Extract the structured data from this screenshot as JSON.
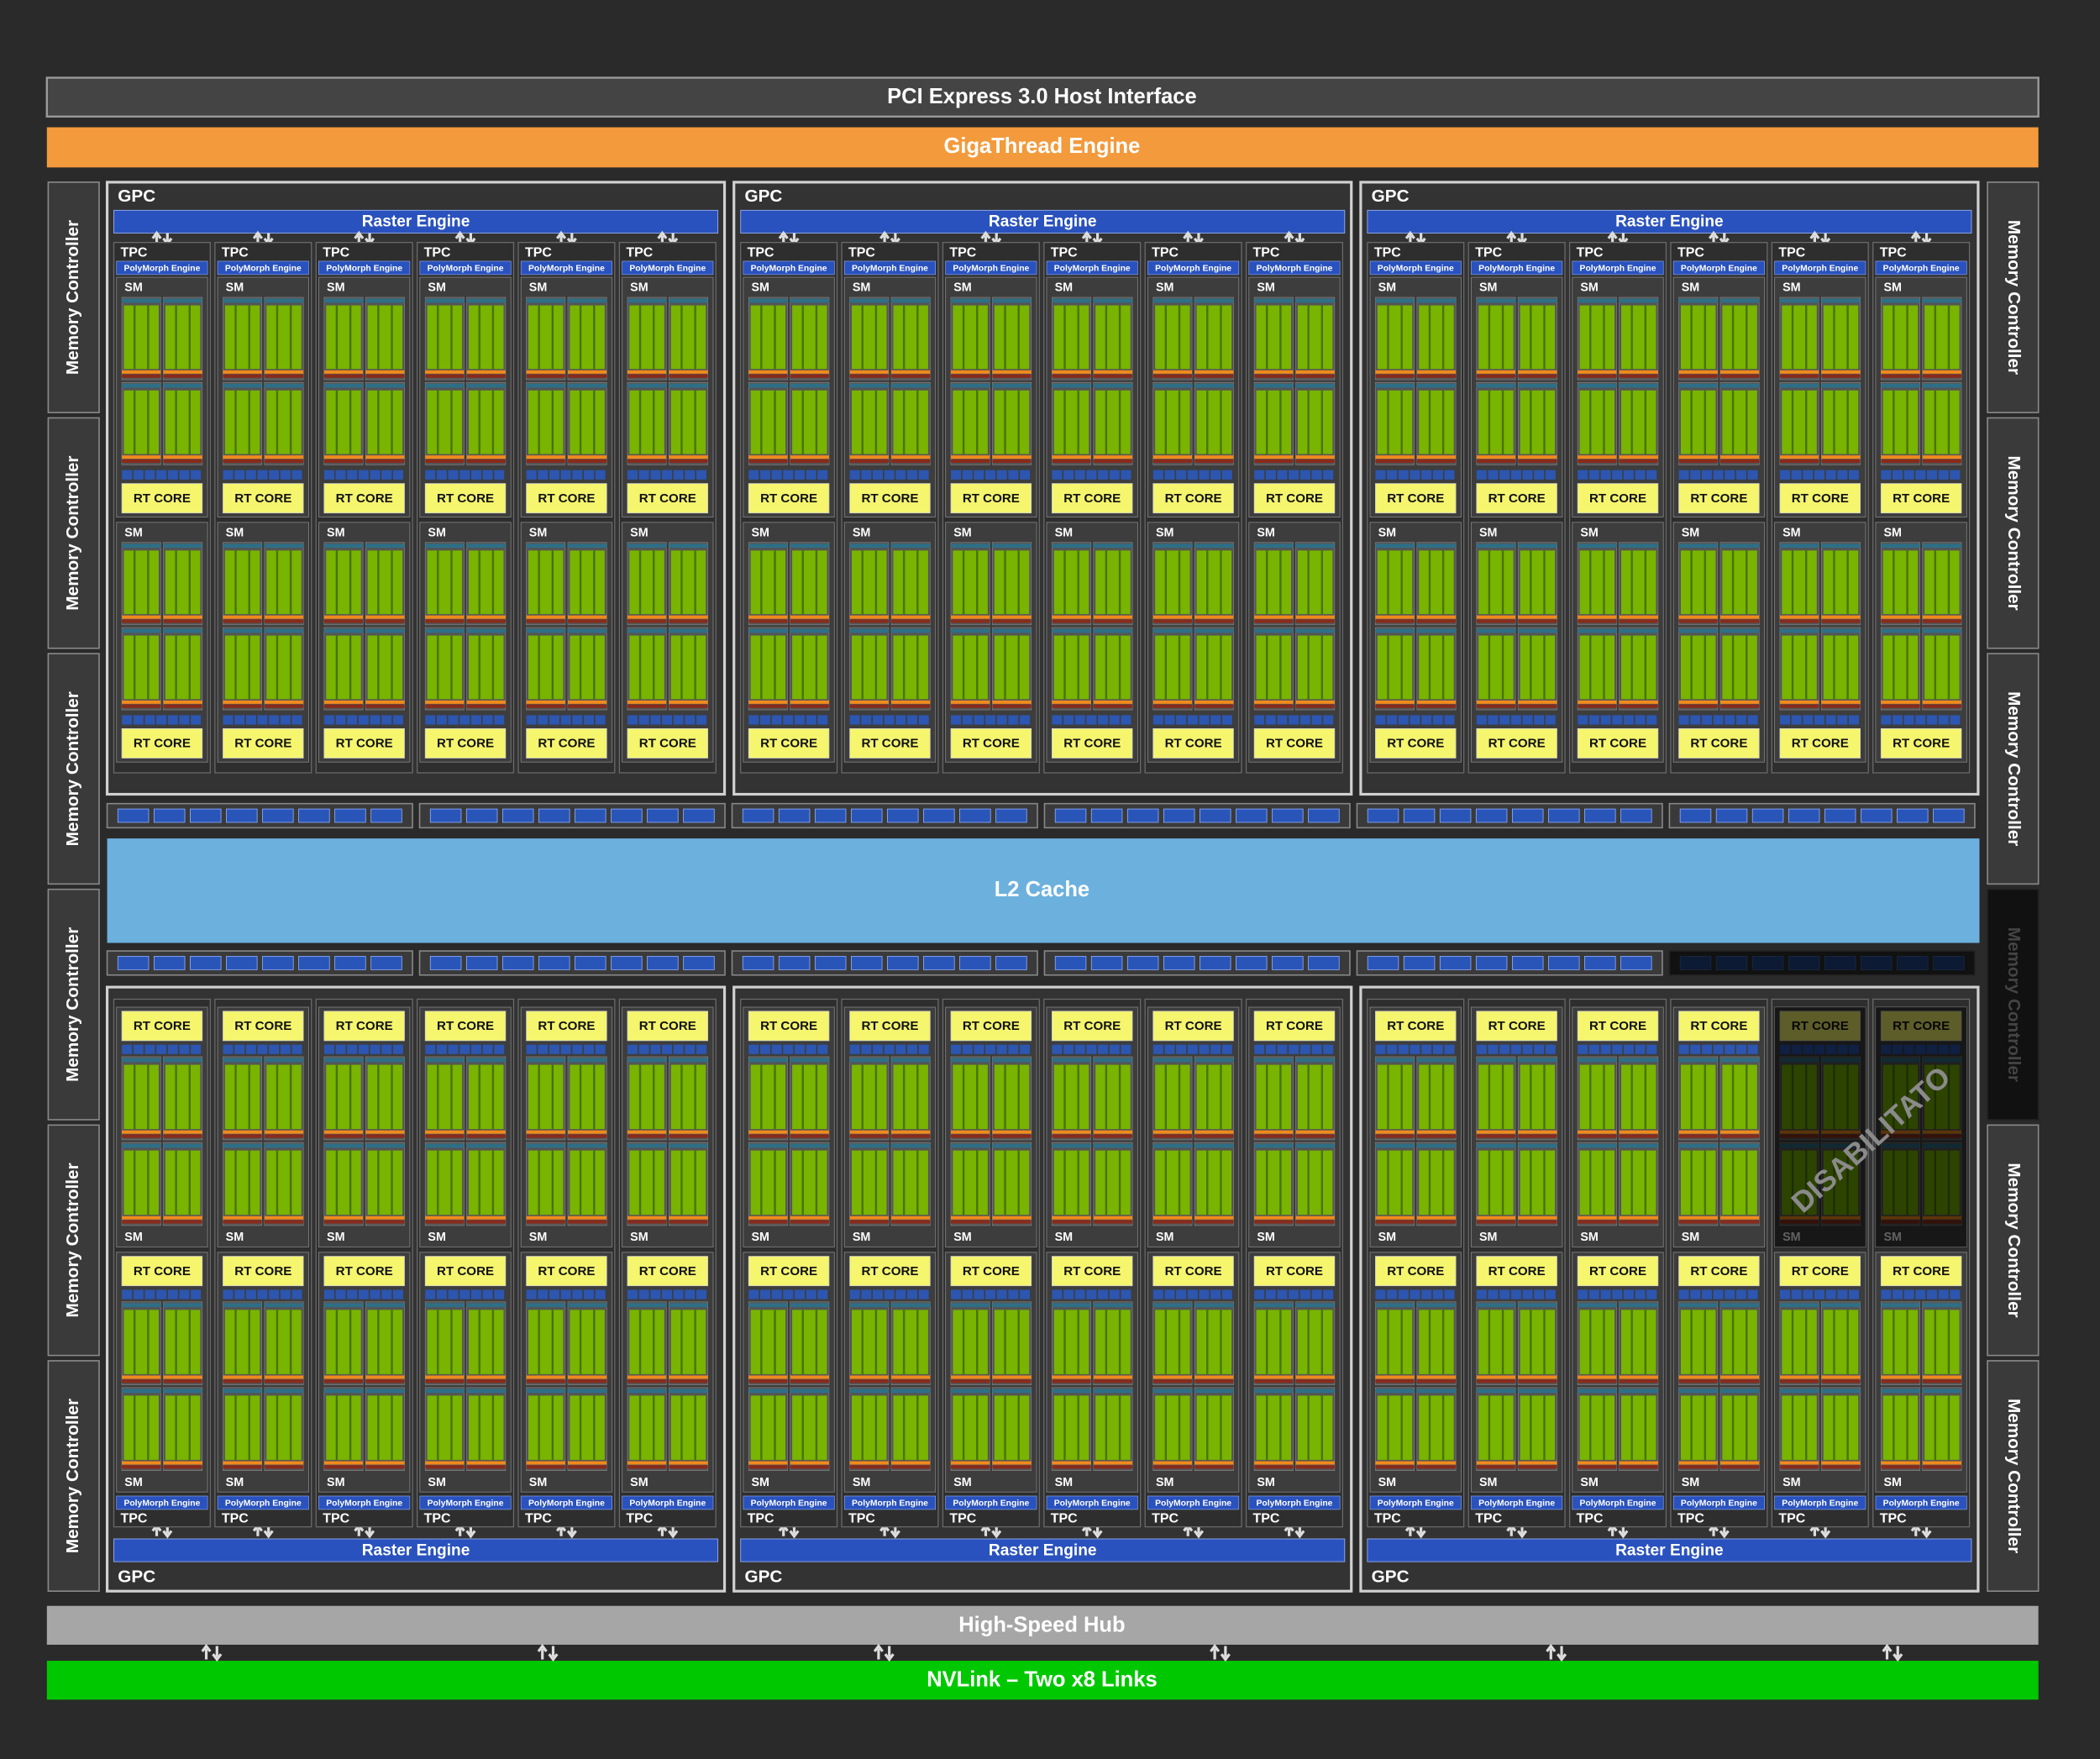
{
  "host_interface": "PCI Express 3.0 Host Interface",
  "gigathread_engine": "GigaThread Engine",
  "l2_cache": "L2 Cache",
  "high_speed_hub": "High-Speed Hub",
  "nvlink": "NVLink – Two x8 Links",
  "disabled_label": "DISABILITATO",
  "memory_controllers_left": [
    {
      "label": "Memory Controller"
    },
    {
      "label": "Memory Controller"
    },
    {
      "label": "Memory Controller"
    },
    {
      "label": "Memory Controller"
    },
    {
      "label": "Memory Controller"
    },
    {
      "label": "Memory Controller"
    }
  ],
  "memory_controllers_right": [
    {
      "label": "Memory Controller"
    },
    {
      "label": "Memory Controller"
    },
    {
      "label": "Memory Controller"
    },
    {
      "label": "Memory Controller",
      "disabled": true
    },
    {
      "label": "Memory Controller"
    },
    {
      "label": "Memory Controller"
    }
  ],
  "gpcs": [
    {
      "label": "GPC",
      "raster_engine": "Raster Engine",
      "tpcs": [
        {
          "label": "TPC",
          "polymorph_engine": "PolyMorph Engine",
          "sms": [
            {
              "label": "SM",
              "rt_core": "RT CORE"
            },
            {
              "label": "SM",
              "rt_core": "RT CORE"
            }
          ]
        },
        {
          "label": "TPC",
          "polymorph_engine": "PolyMorph Engine",
          "sms": [
            {
              "label": "SM",
              "rt_core": "RT CORE"
            },
            {
              "label": "SM",
              "rt_core": "RT CORE"
            }
          ]
        },
        {
          "label": "TPC",
          "polymorph_engine": "PolyMorph Engine",
          "sms": [
            {
              "label": "SM",
              "rt_core": "RT CORE"
            },
            {
              "label": "SM",
              "rt_core": "RT CORE"
            }
          ]
        },
        {
          "label": "TPC",
          "polymorph_engine": "PolyMorph Engine",
          "sms": [
            {
              "label": "SM",
              "rt_core": "RT CORE"
            },
            {
              "label": "SM",
              "rt_core": "RT CORE"
            }
          ]
        },
        {
          "label": "TPC",
          "polymorph_engine": "PolyMorph Engine",
          "sms": [
            {
              "label": "SM",
              "rt_core": "RT CORE"
            },
            {
              "label": "SM",
              "rt_core": "RT CORE"
            }
          ]
        },
        {
          "label": "TPC",
          "polymorph_engine": "PolyMorph Engine",
          "sms": [
            {
              "label": "SM",
              "rt_core": "RT CORE"
            },
            {
              "label": "SM",
              "rt_core": "RT CORE"
            }
          ]
        }
      ]
    },
    {
      "label": "GPC",
      "raster_engine": "Raster Engine",
      "tpcs": [
        {
          "label": "TPC",
          "polymorph_engine": "PolyMorph Engine",
          "sms": [
            {
              "label": "SM",
              "rt_core": "RT CORE"
            },
            {
              "label": "SM",
              "rt_core": "RT CORE"
            }
          ]
        },
        {
          "label": "TPC",
          "polymorph_engine": "PolyMorph Engine",
          "sms": [
            {
              "label": "SM",
              "rt_core": "RT CORE"
            },
            {
              "label": "SM",
              "rt_core": "RT CORE"
            }
          ]
        },
        {
          "label": "TPC",
          "polymorph_engine": "PolyMorph Engine",
          "sms": [
            {
              "label": "SM",
              "rt_core": "RT CORE"
            },
            {
              "label": "SM",
              "rt_core": "RT CORE"
            }
          ]
        },
        {
          "label": "TPC",
          "polymorph_engine": "PolyMorph Engine",
          "sms": [
            {
              "label": "SM",
              "rt_core": "RT CORE"
            },
            {
              "label": "SM",
              "rt_core": "RT CORE"
            }
          ]
        },
        {
          "label": "TPC",
          "polymorph_engine": "PolyMorph Engine",
          "sms": [
            {
              "label": "SM",
              "rt_core": "RT CORE"
            },
            {
              "label": "SM",
              "rt_core": "RT CORE"
            }
          ]
        },
        {
          "label": "TPC",
          "polymorph_engine": "PolyMorph Engine",
          "sms": [
            {
              "label": "SM",
              "rt_core": "RT CORE"
            },
            {
              "label": "SM",
              "rt_core": "RT CORE"
            }
          ]
        }
      ]
    },
    {
      "label": "GPC",
      "raster_engine": "Raster Engine",
      "tpcs": [
        {
          "label": "TPC",
          "polymorph_engine": "PolyMorph Engine",
          "sms": [
            {
              "label": "SM",
              "rt_core": "RT CORE"
            },
            {
              "label": "SM",
              "rt_core": "RT CORE"
            }
          ]
        },
        {
          "label": "TPC",
          "polymorph_engine": "PolyMorph Engine",
          "sms": [
            {
              "label": "SM",
              "rt_core": "RT CORE"
            },
            {
              "label": "SM",
              "rt_core": "RT CORE"
            }
          ]
        },
        {
          "label": "TPC",
          "polymorph_engine": "PolyMorph Engine",
          "sms": [
            {
              "label": "SM",
              "rt_core": "RT CORE"
            },
            {
              "label": "SM",
              "rt_core": "RT CORE"
            }
          ]
        },
        {
          "label": "TPC",
          "polymorph_engine": "PolyMorph Engine",
          "sms": [
            {
              "label": "SM",
              "rt_core": "RT CORE"
            },
            {
              "label": "SM",
              "rt_core": "RT CORE"
            }
          ]
        },
        {
          "label": "TPC",
          "polymorph_engine": "PolyMorph Engine",
          "sms": [
            {
              "label": "SM",
              "rt_core": "RT CORE"
            },
            {
              "label": "SM",
              "rt_core": "RT CORE"
            }
          ]
        },
        {
          "label": "TPC",
          "polymorph_engine": "PolyMorph Engine",
          "sms": [
            {
              "label": "SM",
              "rt_core": "RT CORE"
            },
            {
              "label": "SM",
              "rt_core": "RT CORE"
            }
          ]
        }
      ]
    },
    {
      "label": "GPC",
      "raster_engine": "Raster Engine",
      "tpcs": [
        {
          "label": "TPC",
          "polymorph_engine": "PolyMorph Engine",
          "sms": [
            {
              "label": "SM",
              "rt_core": "RT CORE"
            },
            {
              "label": "SM",
              "rt_core": "RT CORE"
            }
          ]
        },
        {
          "label": "TPC",
          "polymorph_engine": "PolyMorph Engine",
          "sms": [
            {
              "label": "SM",
              "rt_core": "RT CORE"
            },
            {
              "label": "SM",
              "rt_core": "RT CORE"
            }
          ]
        },
        {
          "label": "TPC",
          "polymorph_engine": "PolyMorph Engine",
          "sms": [
            {
              "label": "SM",
              "rt_core": "RT CORE"
            },
            {
              "label": "SM",
              "rt_core": "RT CORE"
            }
          ]
        },
        {
          "label": "TPC",
          "polymorph_engine": "PolyMorph Engine",
          "sms": [
            {
              "label": "SM",
              "rt_core": "RT CORE"
            },
            {
              "label": "SM",
              "rt_core": "RT CORE"
            }
          ]
        },
        {
          "label": "TPC",
          "polymorph_engine": "PolyMorph Engine",
          "sms": [
            {
              "label": "SM",
              "rt_core": "RT CORE"
            },
            {
              "label": "SM",
              "rt_core": "RT CORE"
            }
          ]
        },
        {
          "label": "TPC",
          "polymorph_engine": "PolyMorph Engine",
          "sms": [
            {
              "label": "SM",
              "rt_core": "RT CORE"
            },
            {
              "label": "SM",
              "rt_core": "RT CORE"
            }
          ]
        }
      ]
    },
    {
      "label": "GPC",
      "raster_engine": "Raster Engine",
      "tpcs": [
        {
          "label": "TPC",
          "polymorph_engine": "PolyMorph Engine",
          "sms": [
            {
              "label": "SM",
              "rt_core": "RT CORE"
            },
            {
              "label": "SM",
              "rt_core": "RT CORE"
            }
          ]
        },
        {
          "label": "TPC",
          "polymorph_engine": "PolyMorph Engine",
          "sms": [
            {
              "label": "SM",
              "rt_core": "RT CORE"
            },
            {
              "label": "SM",
              "rt_core": "RT CORE"
            }
          ]
        },
        {
          "label": "TPC",
          "polymorph_engine": "PolyMorph Engine",
          "sms": [
            {
              "label": "SM",
              "rt_core": "RT CORE"
            },
            {
              "label": "SM",
              "rt_core": "RT CORE"
            }
          ]
        },
        {
          "label": "TPC",
          "polymorph_engine": "PolyMorph Engine",
          "sms": [
            {
              "label": "SM",
              "rt_core": "RT CORE"
            },
            {
              "label": "SM",
              "rt_core": "RT CORE"
            }
          ]
        },
        {
          "label": "TPC",
          "polymorph_engine": "PolyMorph Engine",
          "sms": [
            {
              "label": "SM",
              "rt_core": "RT CORE"
            },
            {
              "label": "SM",
              "rt_core": "RT CORE"
            }
          ]
        },
        {
          "label": "TPC",
          "polymorph_engine": "PolyMorph Engine",
          "sms": [
            {
              "label": "SM",
              "rt_core": "RT CORE"
            },
            {
              "label": "SM",
              "rt_core": "RT CORE"
            }
          ]
        }
      ]
    },
    {
      "label": "GPC",
      "raster_engine": "Raster Engine",
      "tpcs": [
        {
          "label": "TPC",
          "polymorph_engine": "PolyMorph Engine",
          "sms": [
            {
              "label": "SM",
              "rt_core": "RT CORE"
            },
            {
              "label": "SM",
              "rt_core": "RT CORE"
            }
          ]
        },
        {
          "label": "TPC",
          "polymorph_engine": "PolyMorph Engine",
          "sms": [
            {
              "label": "SM",
              "rt_core": "RT CORE"
            },
            {
              "label": "SM",
              "rt_core": "RT CORE"
            }
          ]
        },
        {
          "label": "TPC",
          "polymorph_engine": "PolyMorph Engine",
          "sms": [
            {
              "label": "SM",
              "rt_core": "RT CORE"
            },
            {
              "label": "SM",
              "rt_core": "RT CORE"
            }
          ]
        },
        {
          "label": "TPC",
          "polymorph_engine": "PolyMorph Engine",
          "sms": [
            {
              "label": "SM",
              "rt_core": "RT CORE"
            },
            {
              "label": "SM",
              "rt_core": "RT CORE"
            }
          ]
        },
        {
          "label": "TPC",
          "polymorph_engine": "PolyMorph Engine",
          "sms": [
            {
              "label": "SM",
              "rt_core": "RT CORE",
              "disabled": true
            },
            {
              "label": "SM",
              "rt_core": "RT CORE"
            }
          ]
        },
        {
          "label": "TPC",
          "polymorph_engine": "PolyMorph Engine",
          "sms": [
            {
              "label": "SM",
              "rt_core": "RT CORE",
              "disabled": true
            },
            {
              "label": "SM",
              "rt_core": "RT CORE"
            }
          ]
        }
      ]
    }
  ]
}
